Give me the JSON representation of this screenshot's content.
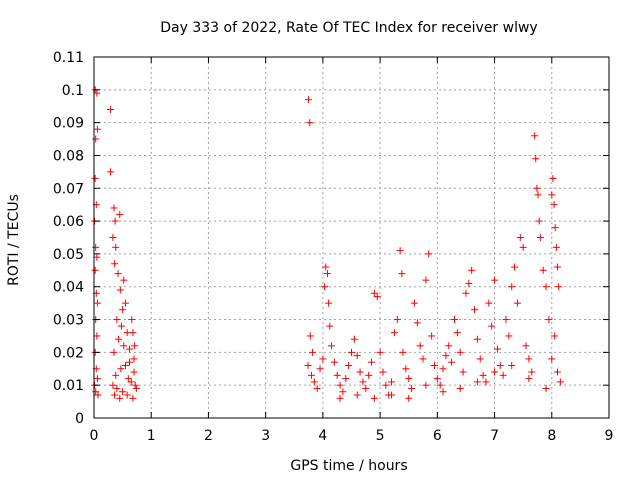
{
  "chart_data": {
    "type": "scatter",
    "title": "Day 333 of 2022, Rate Of TEC Index for receiver wlwy",
    "xlabel": "GPS time / hours",
    "ylabel": "ROTI / TECUs",
    "xlim": [
      0,
      9
    ],
    "ylim": [
      0,
      0.11
    ],
    "grid": true,
    "marker": "+",
    "series_color": "#ff0000",
    "x_ticks": [
      "0",
      "1",
      "2",
      "3",
      "4",
      "5",
      "6",
      "7",
      "8",
      "9"
    ],
    "y_ticks": [
      "0",
      "0.01",
      "0.02",
      "0.03",
      "0.04",
      "0.05",
      "0.06",
      "0.07",
      "0.08",
      "0.09",
      "0.1",
      "0.11"
    ],
    "series": [
      {
        "points": [
          [
            0.02,
            0.1
          ],
          [
            0.05,
            0.099
          ],
          [
            0.03,
            0.085
          ],
          [
            0.06,
            0.088
          ],
          [
            0.02,
            0.073
          ],
          [
            0.04,
            0.065
          ],
          [
            0.01,
            0.06
          ],
          [
            0.03,
            0.052
          ],
          [
            0.05,
            0.049
          ],
          [
            0.02,
            0.045
          ],
          [
            0.04,
            0.038
          ],
          [
            0.06,
            0.035
          ],
          [
            0.03,
            0.03
          ],
          [
            0.05,
            0.025
          ],
          [
            0.02,
            0.02
          ],
          [
            0.04,
            0.015
          ],
          [
            0.06,
            0.012
          ],
          [
            0.01,
            0.01
          ],
          [
            0.03,
            0.008
          ],
          [
            0.07,
            0.007
          ],
          [
            0.29,
            0.094
          ],
          [
            0.29,
            0.075
          ],
          [
            0.35,
            0.064
          ],
          [
            0.37,
            0.06
          ],
          [
            0.33,
            0.055
          ],
          [
            0.38,
            0.052
          ],
          [
            0.36,
            0.047
          ],
          [
            0.42,
            0.044
          ],
          [
            0.45,
            0.062
          ],
          [
            0.52,
            0.042
          ],
          [
            0.46,
            0.039
          ],
          [
            0.55,
            0.035
          ],
          [
            0.5,
            0.033
          ],
          [
            0.4,
            0.03
          ],
          [
            0.48,
            0.028
          ],
          [
            0.58,
            0.026
          ],
          [
            0.43,
            0.024
          ],
          [
            0.52,
            0.022
          ],
          [
            0.62,
            0.021
          ],
          [
            0.35,
            0.02
          ],
          [
            0.66,
            0.03
          ],
          [
            0.68,
            0.026
          ],
          [
            0.71,
            0.022
          ],
          [
            0.7,
            0.018
          ],
          [
            0.55,
            0.016
          ],
          [
            0.47,
            0.015
          ],
          [
            0.38,
            0.013
          ],
          [
            0.6,
            0.012
          ],
          [
            0.65,
            0.011
          ],
          [
            0.72,
            0.01
          ],
          [
            0.33,
            0.01
          ],
          [
            0.4,
            0.009
          ],
          [
            0.5,
            0.008
          ],
          [
            0.58,
            0.007
          ],
          [
            0.68,
            0.006
          ],
          [
            0.45,
            0.006
          ],
          [
            0.36,
            0.007
          ],
          [
            0.74,
            0.009
          ],
          [
            0.7,
            0.014
          ],
          [
            0.62,
            0.017
          ],
          [
            3.75,
            0.097
          ],
          [
            3.77,
            0.09
          ],
          [
            3.78,
            0.025
          ],
          [
            3.82,
            0.02
          ],
          [
            3.74,
            0.016
          ],
          [
            3.8,
            0.013
          ],
          [
            3.85,
            0.011
          ],
          [
            3.9,
            0.009
          ],
          [
            3.95,
            0.015
          ],
          [
            4.0,
            0.018
          ],
          [
            4.05,
            0.046
          ],
          [
            4.08,
            0.044
          ],
          [
            4.03,
            0.04
          ],
          [
            4.1,
            0.035
          ],
          [
            4.12,
            0.028
          ],
          [
            4.15,
            0.022
          ],
          [
            4.2,
            0.017
          ],
          [
            4.25,
            0.013
          ],
          [
            4.3,
            0.01
          ],
          [
            4.35,
            0.008
          ],
          [
            4.4,
            0.012
          ],
          [
            4.45,
            0.016
          ],
          [
            4.5,
            0.02
          ],
          [
            4.55,
            0.024
          ],
          [
            4.6,
            0.019
          ],
          [
            4.65,
            0.014
          ],
          [
            4.7,
            0.011
          ],
          [
            4.75,
            0.009
          ],
          [
            4.8,
            0.013
          ],
          [
            4.85,
            0.017
          ],
          [
            4.9,
            0.038
          ],
          [
            4.95,
            0.037
          ],
          [
            5.0,
            0.02
          ],
          [
            5.05,
            0.014
          ],
          [
            5.1,
            0.01
          ],
          [
            5.15,
            0.007
          ],
          [
            5.2,
            0.011
          ],
          [
            5.25,
            0.026
          ],
          [
            5.3,
            0.03
          ],
          [
            5.35,
            0.051
          ],
          [
            5.38,
            0.044
          ],
          [
            5.4,
            0.02
          ],
          [
            5.45,
            0.015
          ],
          [
            5.5,
            0.012
          ],
          [
            5.55,
            0.009
          ],
          [
            5.6,
            0.035
          ],
          [
            5.65,
            0.029
          ],
          [
            5.7,
            0.022
          ],
          [
            5.75,
            0.018
          ],
          [
            5.8,
            0.042
          ],
          [
            5.85,
            0.05
          ],
          [
            5.9,
            0.025
          ],
          [
            5.95,
            0.016
          ],
          [
            6.0,
            0.012
          ],
          [
            6.05,
            0.01
          ],
          [
            6.1,
            0.015
          ],
          [
            6.15,
            0.019
          ],
          [
            6.2,
            0.022
          ],
          [
            6.25,
            0.017
          ],
          [
            6.3,
            0.03
          ],
          [
            6.35,
            0.026
          ],
          [
            6.4,
            0.02
          ],
          [
            6.45,
            0.014
          ],
          [
            6.5,
            0.038
          ],
          [
            6.55,
            0.041
          ],
          [
            6.6,
            0.045
          ],
          [
            6.65,
            0.033
          ],
          [
            6.7,
            0.024
          ],
          [
            6.75,
            0.018
          ],
          [
            6.8,
            0.013
          ],
          [
            6.85,
            0.011
          ],
          [
            6.9,
            0.035
          ],
          [
            6.95,
            0.028
          ],
          [
            7.0,
            0.042
          ],
          [
            7.05,
            0.021
          ],
          [
            7.1,
            0.016
          ],
          [
            7.15,
            0.013
          ],
          [
            7.2,
            0.03
          ],
          [
            7.25,
            0.025
          ],
          [
            7.3,
            0.04
          ],
          [
            7.35,
            0.046
          ],
          [
            7.4,
            0.035
          ],
          [
            7.45,
            0.055
          ],
          [
            7.5,
            0.052
          ],
          [
            7.55,
            0.022
          ],
          [
            7.6,
            0.018
          ],
          [
            7.65,
            0.014
          ],
          [
            7.7,
            0.086
          ],
          [
            7.72,
            0.079
          ],
          [
            7.74,
            0.07
          ],
          [
            7.76,
            0.068
          ],
          [
            7.78,
            0.06
          ],
          [
            7.8,
            0.055
          ],
          [
            7.85,
            0.045
          ],
          [
            7.9,
            0.04
          ],
          [
            7.95,
            0.03
          ],
          [
            8.0,
            0.068
          ],
          [
            8.02,
            0.073
          ],
          [
            8.04,
            0.065
          ],
          [
            8.06,
            0.058
          ],
          [
            8.08,
            0.052
          ],
          [
            8.1,
            0.046
          ],
          [
            8.12,
            0.04
          ],
          [
            8.05,
            0.025
          ],
          [
            8.0,
            0.018
          ],
          [
            8.1,
            0.014
          ],
          [
            8.15,
            0.011
          ],
          [
            7.9,
            0.009
          ],
          [
            7.6,
            0.012
          ],
          [
            7.3,
            0.016
          ],
          [
            7.0,
            0.014
          ],
          [
            6.7,
            0.011
          ],
          [
            6.4,
            0.009
          ],
          [
            6.1,
            0.008
          ],
          [
            5.8,
            0.01
          ],
          [
            5.5,
            0.006
          ],
          [
            5.2,
            0.007
          ],
          [
            4.9,
            0.006
          ],
          [
            4.6,
            0.007
          ],
          [
            4.3,
            0.006
          ]
        ]
      }
    ]
  }
}
